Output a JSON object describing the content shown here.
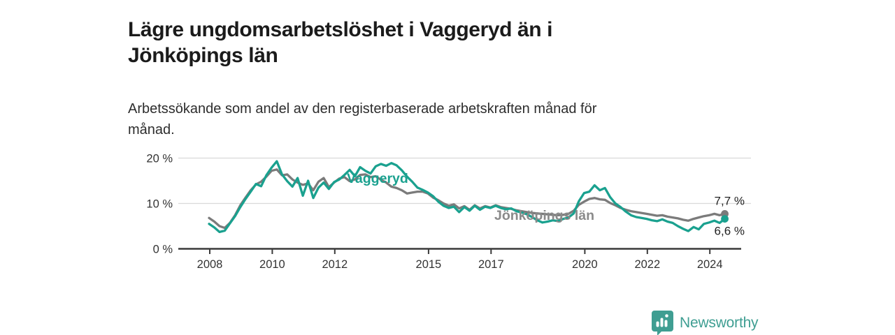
{
  "header": {
    "title": "Lägre ungdomsarbetslöshet i Vaggeryd än i\nJönköpings län",
    "subtitle": "Arbetssökande som andel av den registerbaserade arbetskraften månad för\nmånad."
  },
  "chart_data": {
    "type": "line",
    "title": "Lägre ungdomsarbetslöshet i Vaggeryd än i Jönköpings län",
    "subtitle": "Arbetssökande som andel av den registerbaserade arbetskraften månad för månad.",
    "unit": "%",
    "grid": "horizontal",
    "legend_position": "inline-labels",
    "ylim": [
      0,
      21
    ],
    "xlim": [
      2007,
      2025
    ],
    "y_ticks": [
      {
        "value": 0,
        "label": "0 %"
      },
      {
        "value": 10,
        "label": "10 %"
      },
      {
        "value": 20,
        "label": "20 %"
      }
    ],
    "x_ticks": [
      {
        "year": 2008,
        "label": "2008"
      },
      {
        "year": 2010,
        "label": "2010"
      },
      {
        "year": 2012,
        "label": "2012"
      },
      {
        "year": 2015,
        "label": "2015"
      },
      {
        "year": 2017,
        "label": "2017"
      },
      {
        "year": 2020,
        "label": "2020"
      },
      {
        "year": 2022,
        "label": "2022"
      },
      {
        "year": 2024,
        "label": "2024"
      }
    ],
    "x_start_year": 2008,
    "x_step_months": 2,
    "series": [
      {
        "name": "Jönköpings län",
        "color": "#7b7b7b",
        "label_color": "#8a8a8a",
        "end_label": "7,7 %",
        "end_value": 7.7,
        "end_label_placement": "above",
        "values": [
          6.8,
          6.0,
          5.0,
          4.6,
          5.7,
          7.4,
          9.6,
          11.3,
          12.9,
          14.2,
          14.8,
          15.9,
          17.2,
          17.5,
          16.2,
          16.4,
          15.3,
          14.6,
          14.1,
          14.4,
          12.9,
          14.8,
          15.6,
          13.6,
          14.6,
          15.5,
          15.8,
          14.9,
          15.3,
          16.3,
          16.4,
          15.8,
          16.0,
          15.2,
          14.6,
          13.7,
          13.4,
          12.9,
          12.2,
          12.4,
          12.6,
          12.6,
          12.2,
          11.3,
          10.7,
          10.0,
          9.5,
          9.8,
          8.9,
          9.4,
          8.6,
          9.6,
          8.9,
          9.4,
          9.1,
          9.6,
          9.2,
          9.0,
          8.8,
          8.5,
          8.3,
          8.1,
          7.9,
          7.8,
          7.7,
          7.6,
          7.5,
          7.4,
          7.5,
          7.7,
          8.4,
          9.7,
          10.4,
          11.0,
          11.2,
          10.9,
          10.8,
          10.1,
          9.6,
          9.0,
          8.6,
          8.3,
          8.1,
          7.9,
          7.7,
          7.5,
          7.3,
          7.4,
          7.1,
          6.9,
          6.7,
          6.4,
          6.2,
          6.6,
          6.9,
          7.2,
          7.4,
          7.7,
          7.4,
          7.7
        ]
      },
      {
        "name": "Vaggeryd",
        "color": "#1aa18f",
        "label_color": "#1aa18f",
        "end_label": "6,6 %",
        "end_value": 6.6,
        "end_label_placement": "below",
        "values": [
          5.5,
          4.7,
          3.7,
          4.0,
          5.6,
          7.2,
          9.2,
          11.0,
          12.6,
          14.3,
          13.8,
          16.2,
          17.9,
          19.3,
          16.4,
          14.9,
          13.7,
          15.6,
          11.7,
          15.0,
          11.2,
          13.5,
          14.6,
          13.2,
          14.7,
          15.3,
          16.3,
          17.4,
          16.0,
          18.0,
          17.2,
          16.6,
          18.2,
          18.7,
          18.3,
          18.9,
          18.4,
          17.3,
          15.9,
          14.8,
          13.5,
          13.0,
          12.4,
          11.6,
          10.4,
          9.5,
          9.0,
          9.3,
          8.1,
          9.2,
          8.4,
          9.5,
          8.6,
          9.3,
          9.0,
          9.5,
          9.0,
          8.7,
          8.9,
          8.3,
          8.0,
          7.6,
          7.0,
          6.3,
          5.8,
          6.0,
          6.3,
          6.1,
          6.6,
          6.9,
          7.8,
          10.5,
          12.3,
          12.6,
          14.0,
          12.9,
          13.4,
          11.4,
          10.0,
          9.2,
          8.2,
          7.4,
          7.0,
          6.8,
          6.6,
          6.3,
          6.1,
          6.5,
          6.0,
          5.7,
          5.0,
          4.4,
          3.9,
          4.8,
          4.3,
          5.5,
          5.8,
          6.2,
          5.7,
          6.6
        ]
      }
    ],
    "colors": {
      "axis": "#3a3a3a",
      "grid": "#d9d9d9",
      "tick_text": "#333333",
      "end_label_text": "#222222"
    }
  },
  "footer": {
    "brand": "Newsworthy",
    "brand_color": "#3f9e92",
    "logo_icon": "newsworthy-pin-barchart-icon"
  }
}
